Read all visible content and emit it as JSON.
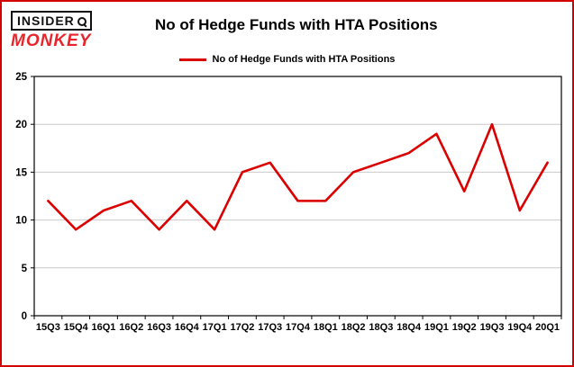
{
  "brand": {
    "line1": "INSIDER",
    "line2": "MONKEY"
  },
  "title": "No of Hedge Funds with HTA Positions",
  "legend_label": "No of Hedge Funds with HTA Positions",
  "colors": {
    "line": "#db0000",
    "border": "#d40000",
    "gridline": "#c9c9c9",
    "axis": "#000000",
    "brand_red": "#e8252b"
  },
  "chart_data": {
    "type": "line",
    "title": "No of Hedge Funds with HTA Positions",
    "categories": [
      "15Q3",
      "15Q4",
      "16Q1",
      "16Q2",
      "16Q3",
      "16Q4",
      "17Q1",
      "17Q2",
      "17Q3",
      "17Q4",
      "18Q1",
      "18Q2",
      "18Q3",
      "18Q4",
      "19Q1",
      "19Q2",
      "19Q3",
      "19Q4",
      "20Q1"
    ],
    "values": [
      12,
      9,
      11,
      12,
      9,
      12,
      9,
      15,
      16,
      12,
      12,
      15,
      16,
      17,
      19,
      13,
      20,
      11,
      16
    ],
    "xlabel": "",
    "ylabel": "",
    "ylim": [
      0,
      25
    ],
    "yticks": [
      0,
      5,
      10,
      15,
      20,
      25
    ],
    "grid": true,
    "legend_position": "top-center"
  }
}
